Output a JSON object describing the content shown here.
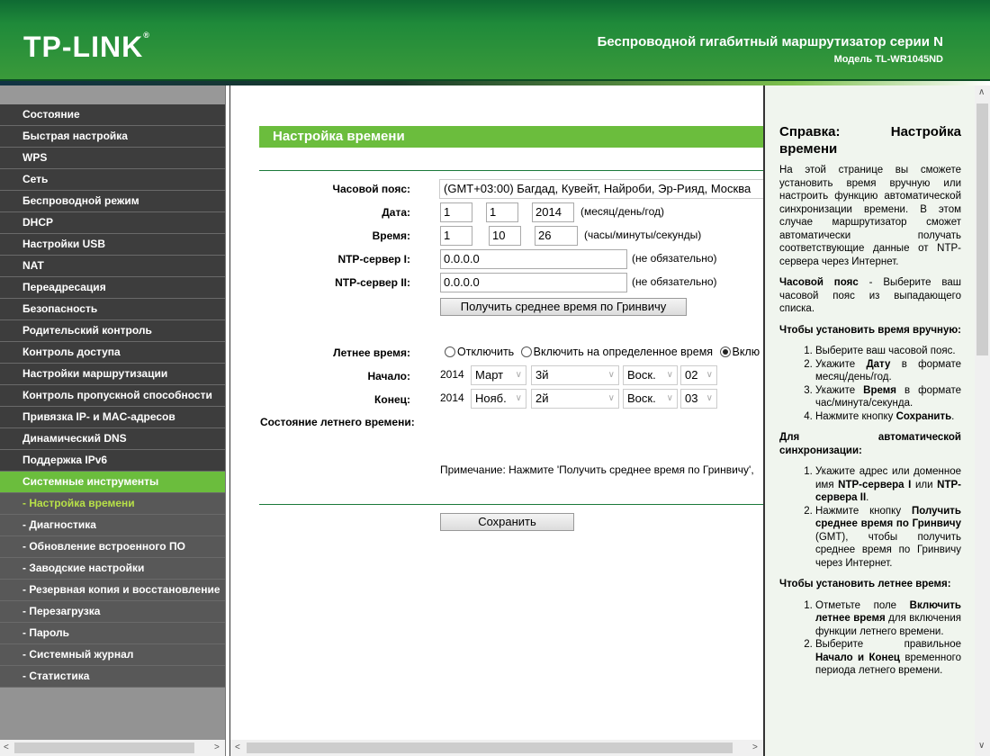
{
  "header": {
    "logo": "TP-LINK",
    "product": "Беспроводной гигабитный маршрутизатор серии N",
    "model": "Модель TL-WR1045ND"
  },
  "sidebar": {
    "items": [
      {
        "label": "Состояние"
      },
      {
        "label": "Быстрая настройка"
      },
      {
        "label": "WPS"
      },
      {
        "label": "Сеть"
      },
      {
        "label": "Беспроводной режим"
      },
      {
        "label": "DHCP"
      },
      {
        "label": "Настройки USB"
      },
      {
        "label": "NAT"
      },
      {
        "label": "Переадресация"
      },
      {
        "label": "Безопасность"
      },
      {
        "label": "Родительский контроль"
      },
      {
        "label": "Контроль доступа"
      },
      {
        "label": "Настройки маршрутизации"
      },
      {
        "label": "Контроль пропускной способности"
      },
      {
        "label": "Привязка IP- и MAC-адресов"
      },
      {
        "label": "Динамический DNS"
      },
      {
        "label": "Поддержка IPv6"
      },
      {
        "label": "Системные инструменты",
        "state": "active"
      },
      {
        "label": "- Настройка времени",
        "state": "current"
      },
      {
        "label": "- Диагностика"
      },
      {
        "label": "- Обновление встроенного ПО"
      },
      {
        "label": "- Заводские настройки"
      },
      {
        "label": "- Резервная копия и восстановление"
      },
      {
        "label": "- Перезагрузка"
      },
      {
        "label": "- Пароль"
      },
      {
        "label": "- Системный журнал"
      },
      {
        "label": "- Статистика"
      }
    ]
  },
  "main": {
    "title": "Настройка времени",
    "timezone_label": "Часовой пояс:",
    "timezone_value": "(GMT+03:00) Багдад, Кувейт, Найроби, Эр-Рияд, Москва",
    "date_label": "Дата:",
    "date": {
      "month": "1",
      "day": "1",
      "year": "2014"
    },
    "date_hint": "(месяц/день/год)",
    "time_label": "Время:",
    "time": {
      "hour": "1",
      "minute": "10",
      "second": "26"
    },
    "time_hint": "(часы/минуты/секунды)",
    "ntp1_label": "NTP-сервер I:",
    "ntp1_value": "0.0.0.0",
    "ntp1_hint": "(не обязательно)",
    "ntp2_label": "NTP-сервер II:",
    "ntp2_value": "0.0.0.0",
    "ntp2_hint": "(не обязательно)",
    "gmt_button": "Получить среднее время по Гринвичу",
    "dst_label": "Летнее время:",
    "dst_options": [
      "Отключить",
      "Включить на определенное время",
      "Вклю"
    ],
    "dst_selected": 2,
    "start_label": "Начало:",
    "start": {
      "year": "2014",
      "month": "Март",
      "week": "3й",
      "day": "Воск.",
      "hour": "02"
    },
    "end_label": "Конец:",
    "end": {
      "year": "2014",
      "month": "Нояб.",
      "week": "2й",
      "day": "Воск.",
      "hour": "03"
    },
    "dst_status_label": "Состояние летнего времени:",
    "note": "Примечание: Нажмите 'Получить среднее время по Гринвичу',",
    "save_button": "Сохранить"
  },
  "help": {
    "title": "Справка: Настройка времени",
    "intro": "На этой странице вы сможете установить время вручную или настроить функцию автоматической синхронизации времени. В этом случае маршрутизатор сможет автоматически получать соответствующие данные от NTP-сервера через Интернет.",
    "tz_bold": "Часовой пояс",
    "tz_text": " - Выберите ваш часовой пояс из выпадающего списка.",
    "manual_heading": "Чтобы установить время вручную:",
    "manual_steps": [
      [
        [
          "Выберите ваш часовой пояс.",
          0
        ]
      ],
      [
        [
          "Укажите ",
          0
        ],
        [
          "Дату",
          1
        ],
        [
          " в формате месяц/день/год.",
          0
        ]
      ],
      [
        [
          "Укажите ",
          0
        ],
        [
          "Время",
          1
        ],
        [
          " в формате час/минута/секунда.",
          0
        ]
      ],
      [
        [
          "Нажмите кнопку ",
          0
        ],
        [
          "Сохранить",
          1
        ],
        [
          ".",
          0
        ]
      ]
    ],
    "auto_heading": "Для автоматической синхронизации:",
    "auto_steps": [
      [
        [
          "Укажите адрес или доменное имя ",
          0
        ],
        [
          "NTP-сервера I",
          1
        ],
        [
          " или ",
          0
        ],
        [
          "NTP-сервера II",
          1
        ],
        [
          ".",
          0
        ]
      ],
      [
        [
          "Нажмите кнопку ",
          0
        ],
        [
          "Получить среднее время по Гринвичу",
          1
        ],
        [
          " (GMT), чтобы получить среднее время по Гринвичу через Интернет.",
          0
        ]
      ]
    ],
    "dst_heading": "Чтобы установить летнее время:",
    "dst_steps": [
      [
        [
          "Отметьте поле ",
          0
        ],
        [
          "Включить летнее время",
          1
        ],
        [
          " для включения функции летнего времени.",
          0
        ]
      ],
      [
        [
          "Выберите правильное ",
          0
        ],
        [
          "Начало и Конец",
          1
        ],
        [
          " временного периода летнего времени.",
          0
        ]
      ]
    ]
  },
  "colors": {
    "brand_green": "#1f8a3a",
    "accent_green": "#6bbd3d",
    "sidebar_bg": "#3d3d3d",
    "current_item": "#b7e048"
  }
}
